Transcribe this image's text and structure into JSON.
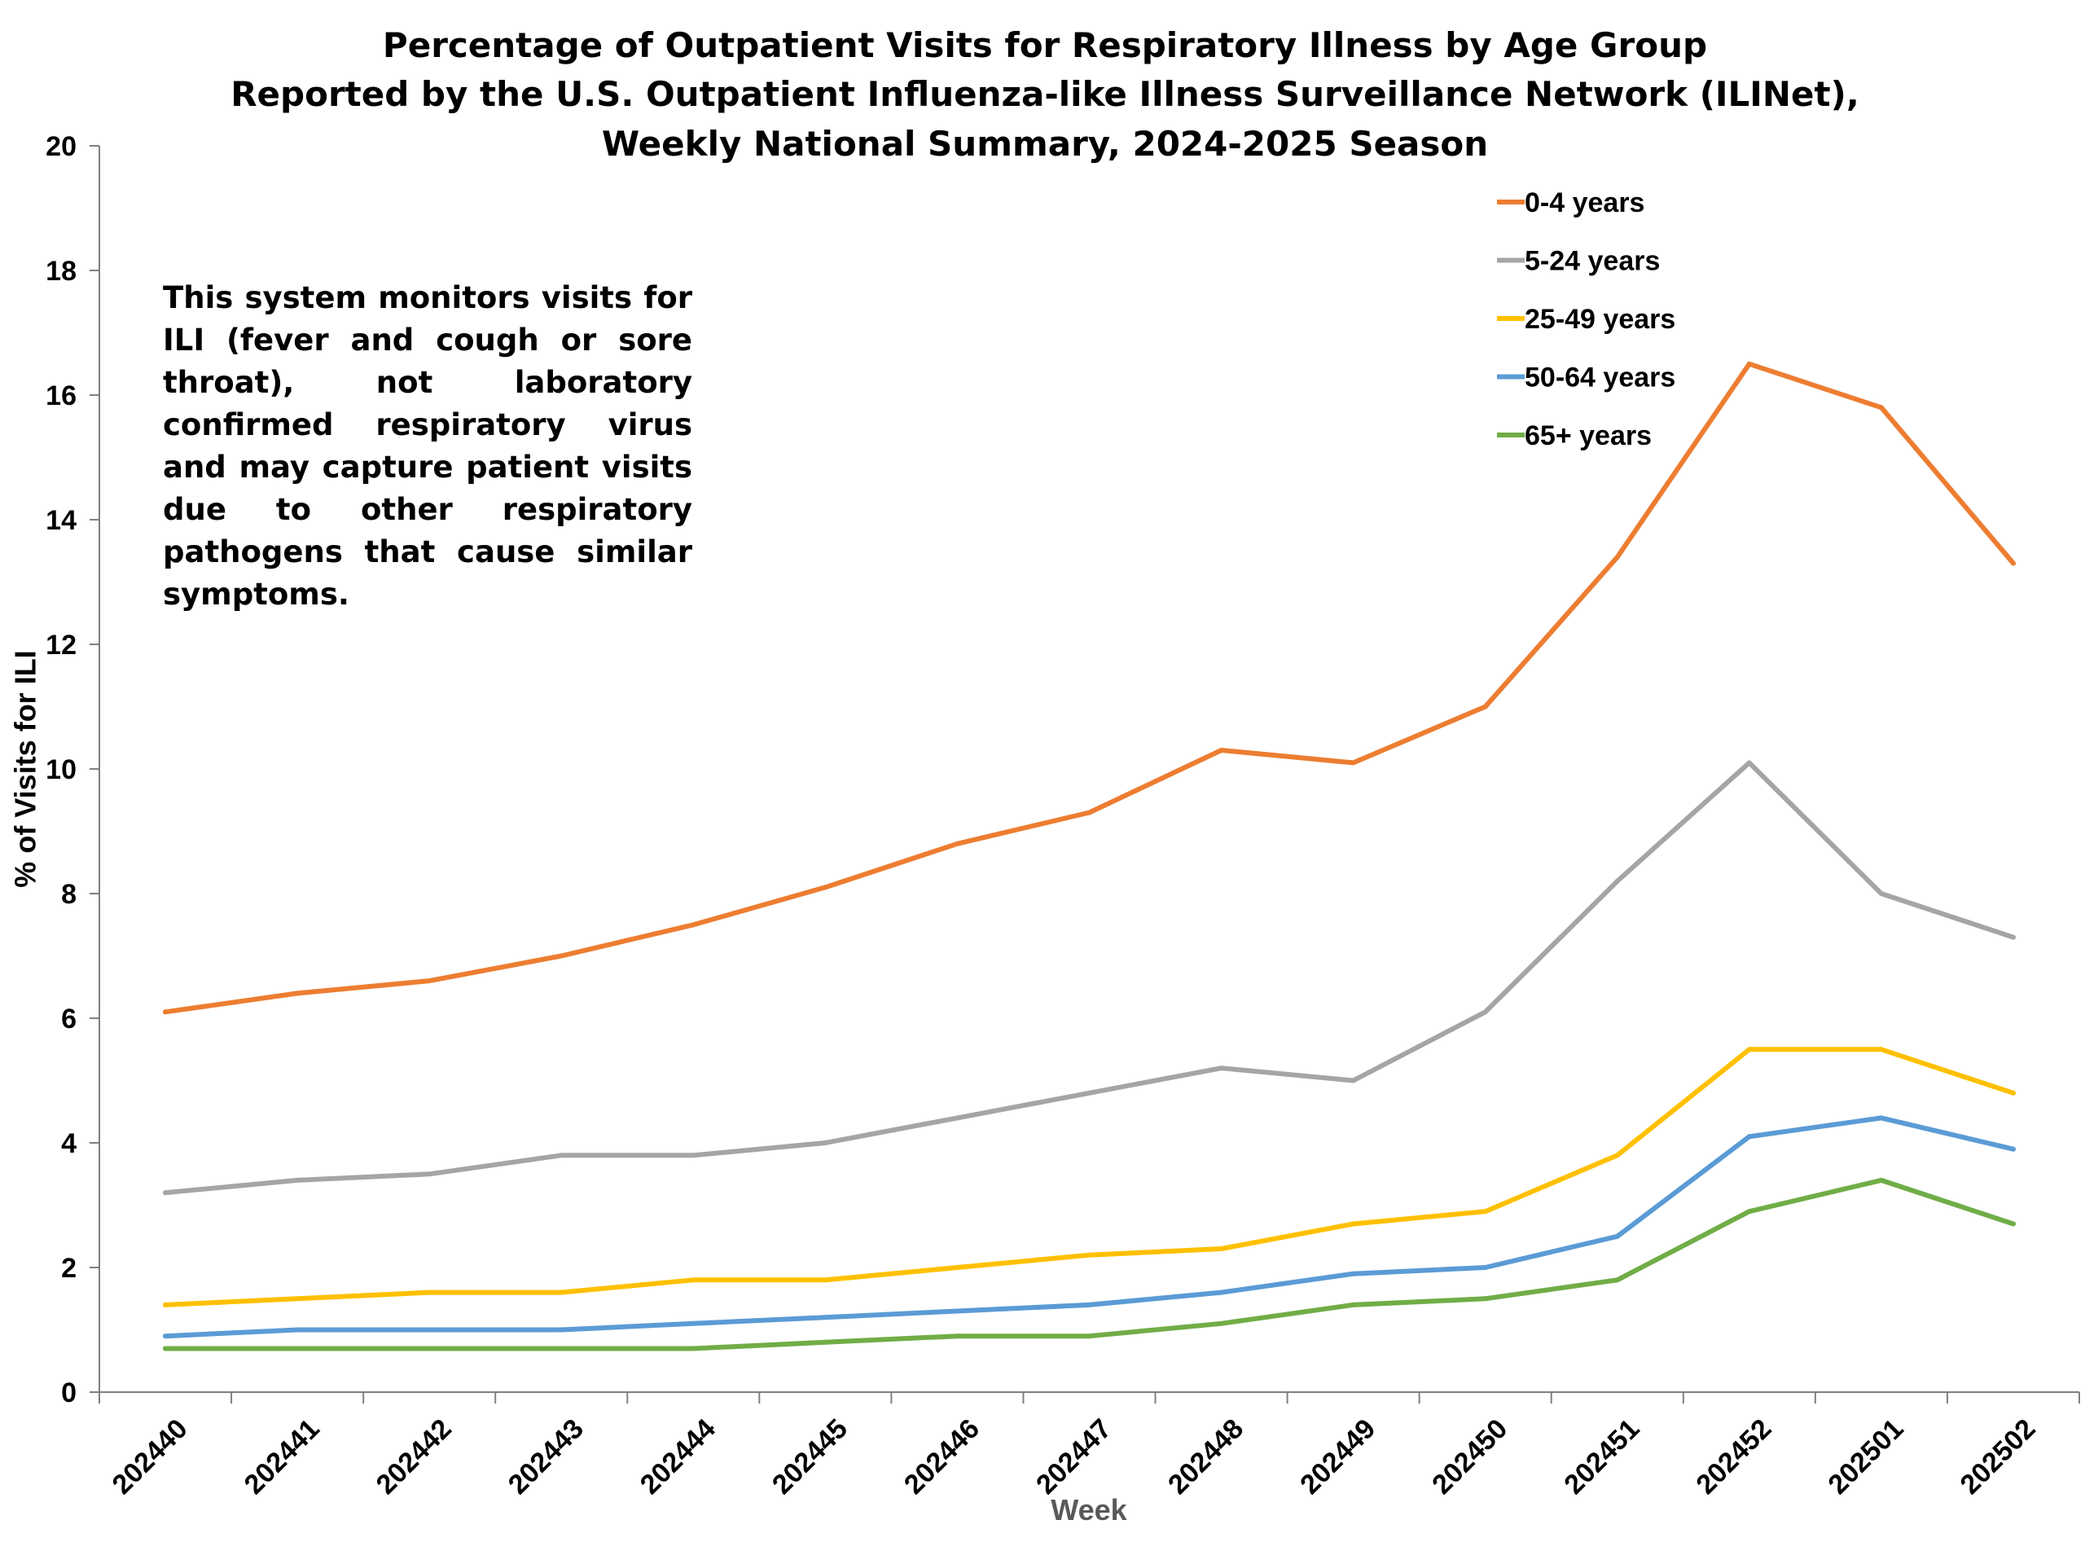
{
  "chart_data": {
    "type": "line",
    "title": [
      "Percentage of Outpatient Visits for Respiratory Illness by Age Group",
      "Reported by the U.S. Outpatient Influenza-like Illness Surveillance Network (ILINet),",
      "Weekly National Summary, 2024-2025 Season"
    ],
    "xlabel": "Week",
    "ylabel": "% of Visits for ILI",
    "ylim": [
      0,
      20
    ],
    "yticks": [
      0,
      2,
      4,
      6,
      8,
      10,
      12,
      14,
      16,
      18,
      20
    ],
    "grid": false,
    "legend_position": "top-right",
    "annotation": "This system monitors visits for ILI (fever and cough or sore throat), not laboratory confirmed respiratory virus and may capture patient visits due to other respiratory pathogens that cause similar symptoms.",
    "categories": [
      "202440",
      "202441",
      "202442",
      "202443",
      "202444",
      "202445",
      "202446",
      "202447",
      "202448",
      "202449",
      "202450",
      "202451",
      "202452",
      "202501",
      "202502"
    ],
    "series": [
      {
        "name": "0-4 years",
        "color": "#ED7D31",
        "values": [
          6.1,
          6.4,
          6.6,
          7.0,
          7.5,
          8.1,
          8.8,
          9.3,
          10.3,
          10.1,
          11.0,
          13.4,
          16.5,
          15.8,
          13.3
        ]
      },
      {
        "name": "5-24 years",
        "color": "#A5A5A5",
        "values": [
          3.2,
          3.4,
          3.5,
          3.8,
          3.8,
          4.0,
          4.4,
          4.8,
          5.2,
          5.0,
          6.1,
          8.2,
          10.1,
          8.0,
          7.3
        ]
      },
      {
        "name": "25-49 years",
        "color": "#FFC000",
        "values": [
          1.4,
          1.5,
          1.6,
          1.6,
          1.8,
          1.8,
          2.0,
          2.2,
          2.3,
          2.7,
          2.9,
          3.8,
          5.5,
          5.5,
          4.8
        ]
      },
      {
        "name": "50-64 years",
        "color": "#5B9BD5",
        "values": [
          0.9,
          1.0,
          1.0,
          1.0,
          1.1,
          1.2,
          1.3,
          1.4,
          1.6,
          1.9,
          2.0,
          2.5,
          4.1,
          4.4,
          3.9
        ]
      },
      {
        "name": "65+ years",
        "color": "#70AD47",
        "values": [
          0.7,
          0.7,
          0.7,
          0.7,
          0.7,
          0.8,
          0.9,
          0.9,
          1.1,
          1.4,
          1.5,
          1.8,
          2.9,
          3.4,
          2.7
        ]
      }
    ],
    "axis_color": "#808080",
    "xlabel_color": "#595959"
  }
}
